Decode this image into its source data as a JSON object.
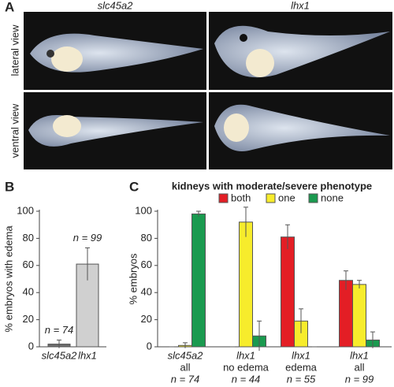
{
  "figure_a": {
    "panel": "A",
    "columns": [
      "slc45a2",
      "lhx1"
    ],
    "rows": [
      "lateral view",
      "ventral view"
    ]
  },
  "chart_data": [
    {
      "type": "bar",
      "panel": "B",
      "ylabel": "% embryos with edema",
      "categories": [
        "slc45a2",
        "lhx1"
      ],
      "values": [
        2,
        61
      ],
      "errors": [
        3,
        12
      ],
      "colors": [
        "#6d6d6d",
        "#d0d0d0"
      ],
      "annotations": [
        "n = 74",
        "n = 99"
      ],
      "ylim": [
        0,
        100
      ],
      "yticks": [
        0,
        20,
        40,
        60,
        80,
        100
      ]
    },
    {
      "type": "grouped-bar",
      "panel": "C",
      "title": "kidneys with moderate/severe phenotype",
      "ylabel": "% embryos",
      "categories": [
        "slc45a2",
        "lhx1",
        "lhx1",
        "lhx1"
      ],
      "subcategories": [
        "all",
        "no edema",
        "edema",
        "all"
      ],
      "n_labels": [
        "n = 74",
        "n = 44",
        "n = 55",
        "n = 99"
      ],
      "series": [
        {
          "name": "both",
          "color": "#e31e25",
          "values": [
            0,
            0,
            81,
            49
          ],
          "errors": [
            0,
            0,
            9,
            7
          ]
        },
        {
          "name": "one",
          "color": "#f7ec2c",
          "values": [
            1,
            92,
            19,
            46
          ],
          "errors": [
            2,
            11,
            9,
            3
          ]
        },
        {
          "name": "none",
          "color": "#1a9a4f",
          "values": [
            98,
            8,
            0,
            5
          ],
          "errors": [
            2,
            11,
            0,
            6
          ]
        }
      ],
      "ylim": [
        0,
        100
      ],
      "yticks": [
        0,
        20,
        40,
        60,
        80,
        100
      ]
    }
  ]
}
